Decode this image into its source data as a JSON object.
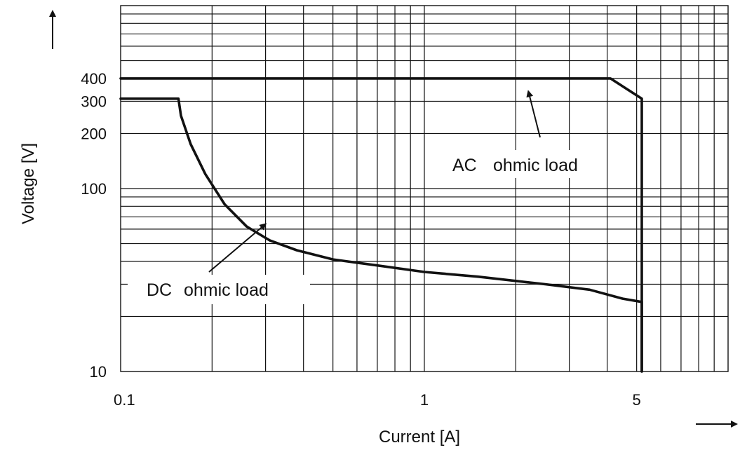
{
  "chart_data": {
    "type": "line",
    "title": "",
    "xlabel": "Current [A]",
    "ylabel": "Voltage [V]",
    "x_scale": "log",
    "y_scale": "log",
    "xlim": [
      0.1,
      10
    ],
    "ylim": [
      10,
      1000
    ],
    "grid": true,
    "x_tick_labels": [
      {
        "value": 0.1,
        "label": "0.1"
      },
      {
        "value": 1,
        "label": "1"
      },
      {
        "value": 5,
        "label": "5"
      }
    ],
    "y_tick_labels": [
      {
        "value": 10,
        "label": "10"
      },
      {
        "value": 100,
        "label": "100"
      },
      {
        "value": 200,
        "label": "200"
      },
      {
        "value": 300,
        "label": "300"
      },
      {
        "value": 400,
        "label": "400"
      }
    ],
    "series": [
      {
        "name": "AC ohmic load",
        "color": "#111111",
        "x": [
          0.1,
          4.1,
          5.2,
          5.2
        ],
        "y": [
          400,
          400,
          310,
          10
        ]
      },
      {
        "name": "DC ohmic load",
        "color": "#111111",
        "x": [
          0.1,
          0.155,
          0.158,
          0.17,
          0.19,
          0.22,
          0.26,
          0.31,
          0.38,
          0.5,
          0.7,
          1.0,
          1.5,
          2.5,
          3.5,
          4.5,
          5.2,
          5.2
        ],
        "y": [
          310,
          310,
          250,
          175,
          120,
          82,
          62,
          52,
          46,
          41,
          38,
          35,
          33,
          30,
          28,
          25,
          24,
          10
        ]
      }
    ],
    "annotations": [
      {
        "prefix": "AC",
        "text": "ohmic load",
        "series": "AC ohmic load",
        "arrow_target": {
          "x": 2.2,
          "y": 340
        }
      },
      {
        "prefix": "DC",
        "text": "ohmic load",
        "series": "DC ohmic load",
        "arrow_target": {
          "x": 0.3,
          "y": 64
        }
      }
    ]
  }
}
